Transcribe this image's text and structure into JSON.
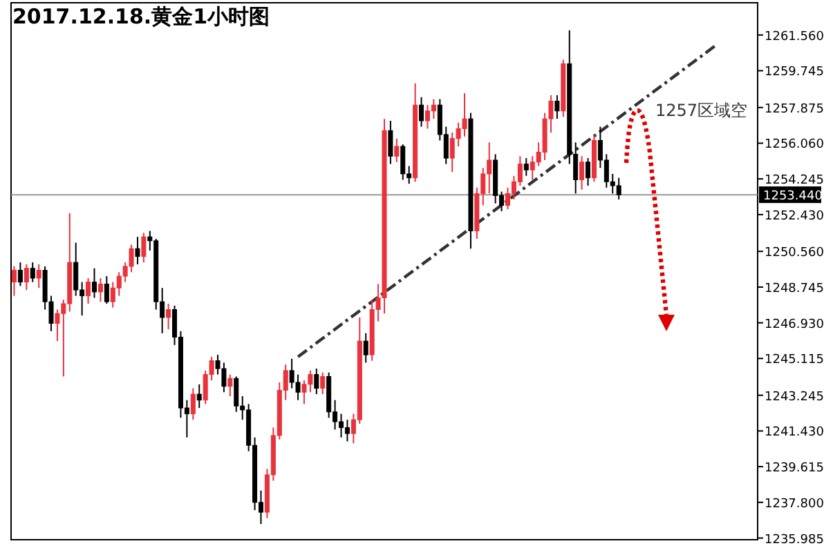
{
  "chart_data": {
    "type": "candlestick",
    "title": "2017.12.18.黄金1小时图",
    "categories": [
      null,
      null,
      null,
      null,
      null,
      null,
      null,
      null,
      null,
      null,
      null,
      null,
      null,
      null,
      null,
      null,
      null,
      null,
      null,
      null,
      null,
      null,
      null,
      null,
      null,
      null,
      null,
      null,
      null,
      null,
      null,
      null,
      null,
      null,
      null,
      null,
      null,
      null,
      null,
      null,
      null,
      null,
      null,
      null,
      null,
      null,
      null,
      null,
      null,
      null,
      null,
      null,
      null,
      null,
      null,
      null,
      null,
      null,
      null,
      null,
      null,
      null,
      null,
      null,
      null,
      null,
      null,
      null,
      null,
      null,
      null,
      null,
      null,
      null,
      null,
      null,
      null,
      null,
      null,
      null,
      null,
      null,
      null,
      null,
      null,
      null,
      null,
      null,
      null,
      null,
      null,
      null,
      null,
      null,
      null,
      null,
      null,
      null,
      null,
      null,
      null,
      null,
      null,
      null,
      null,
      null,
      null,
      null,
      null,
      null,
      null,
      null,
      null,
      null,
      null,
      null,
      null,
      null,
      null,
      null,
      null
    ],
    "ohlc": [
      [
        1249.0,
        1249.8,
        1248.3,
        1249.6
      ],
      [
        1249.6,
        1250.0,
        1248.8,
        1249.0
      ],
      [
        1249.0,
        1249.9,
        1248.6,
        1249.7
      ],
      [
        1249.7,
        1250.0,
        1249.0,
        1249.2
      ],
      [
        1249.2,
        1249.9,
        1248.7,
        1249.6
      ],
      [
        1249.6,
        1249.8,
        1247.6,
        1248.0
      ],
      [
        1248.0,
        1248.3,
        1246.5,
        1246.9
      ],
      [
        1246.9,
        1247.6,
        1246.0,
        1247.4
      ],
      [
        1247.4,
        1248.1,
        1244.2,
        1247.9
      ],
      [
        1247.9,
        1252.5,
        1247.5,
        1250.0
      ],
      [
        1250.0,
        1251.0,
        1248.3,
        1248.6
      ],
      [
        1248.6,
        1249.0,
        1247.3,
        1248.3
      ],
      [
        1248.3,
        1249.2,
        1247.9,
        1249.0
      ],
      [
        1249.0,
        1249.7,
        1248.2,
        1248.5
      ],
      [
        1248.5,
        1249.2,
        1248.0,
        1248.9
      ],
      [
        1248.9,
        1249.3,
        1247.9,
        1248.0
      ],
      [
        1248.0,
        1249.0,
        1247.7,
        1248.7
      ],
      [
        1248.7,
        1249.5,
        1248.3,
        1249.3
      ],
      [
        1249.3,
        1250.0,
        1249.0,
        1249.8
      ],
      [
        1249.8,
        1250.9,
        1249.5,
        1250.7
      ],
      [
        1250.7,
        1251.3,
        1249.9,
        1250.3
      ],
      [
        1250.3,
        1251.5,
        1250.0,
        1251.3
      ],
      [
        1251.3,
        1251.6,
        1250.6,
        1251.1
      ],
      [
        1251.1,
        1251.2,
        1247.6,
        1248.0
      ],
      [
        1248.0,
        1248.7,
        1246.4,
        1247.2
      ],
      [
        1247.2,
        1247.9,
        1246.6,
        1247.6
      ],
      [
        1247.6,
        1247.8,
        1245.8,
        1246.2
      ],
      [
        1246.2,
        1246.5,
        1242.1,
        1242.6
      ],
      [
        1242.6,
        1243.0,
        1241.1,
        1242.3
      ],
      [
        1242.3,
        1243.6,
        1242.0,
        1243.3
      ],
      [
        1243.3,
        1243.8,
        1242.6,
        1243.0
      ],
      [
        1243.0,
        1244.5,
        1242.8,
        1244.3
      ],
      [
        1244.3,
        1245.2,
        1244.0,
        1245.0
      ],
      [
        1245.0,
        1245.3,
        1244.3,
        1244.6
      ],
      [
        1244.6,
        1244.9,
        1243.4,
        1243.7
      ],
      [
        1243.7,
        1244.3,
        1243.2,
        1244.1
      ],
      [
        1244.1,
        1244.2,
        1242.4,
        1242.7
      ],
      [
        1242.7,
        1243.2,
        1242.0,
        1242.5
      ],
      [
        1242.5,
        1242.8,
        1240.4,
        1240.7
      ],
      [
        1240.7,
        1241.1,
        1237.4,
        1237.8
      ],
      [
        1237.8,
        1238.4,
        1236.7,
        1237.3
      ],
      [
        1237.3,
        1239.5,
        1237.0,
        1239.2
      ],
      [
        1239.2,
        1241.6,
        1238.9,
        1241.2
      ],
      [
        1241.2,
        1243.9,
        1241.0,
        1243.5
      ],
      [
        1243.5,
        1244.8,
        1243.0,
        1244.5
      ],
      [
        1244.5,
        1245.1,
        1243.6,
        1243.9
      ],
      [
        1243.9,
        1244.3,
        1243.0,
        1243.4
      ],
      [
        1243.4,
        1244.0,
        1242.8,
        1243.8
      ],
      [
        1243.8,
        1244.5,
        1243.4,
        1244.3
      ],
      [
        1244.3,
        1244.6,
        1243.3,
        1243.6
      ],
      [
        1243.6,
        1244.4,
        1243.3,
        1244.2
      ],
      [
        1244.2,
        1244.4,
        1242.1,
        1242.4
      ],
      [
        1242.4,
        1243.0,
        1241.5,
        1241.9
      ],
      [
        1241.9,
        1242.3,
        1241.1,
        1241.6
      ],
      [
        1241.6,
        1242.0,
        1240.9,
        1241.3
      ],
      [
        1241.3,
        1242.3,
        1240.8,
        1242.0
      ],
      [
        1242.0,
        1247.2,
        1241.8,
        1246.0
      ],
      [
        1246.0,
        1246.4,
        1244.9,
        1245.3
      ],
      [
        1245.3,
        1248.1,
        1245.0,
        1247.6
      ],
      [
        1247.6,
        1248.9,
        1247.0,
        1248.2
      ],
      [
        1248.2,
        1257.3,
        1247.4,
        1256.7
      ],
      [
        1256.7,
        1257.2,
        1255.0,
        1255.4
      ],
      [
        1255.4,
        1256.3,
        1255.1,
        1255.9
      ],
      [
        1255.9,
        1256.0,
        1254.2,
        1254.5
      ],
      [
        1254.5,
        1254.9,
        1254.0,
        1254.3
      ],
      [
        1254.3,
        1259.1,
        1254.1,
        1258.0
      ],
      [
        1258.0,
        1258.4,
        1256.9,
        1257.2
      ],
      [
        1257.2,
        1258.0,
        1256.8,
        1257.7
      ],
      [
        1257.7,
        1258.3,
        1257.3,
        1258.0
      ],
      [
        1258.0,
        1258.3,
        1256.2,
        1256.5
      ],
      [
        1256.5,
        1256.9,
        1255.0,
        1255.3
      ],
      [
        1255.3,
        1256.6,
        1254.6,
        1256.3
      ],
      [
        1256.3,
        1257.1,
        1255.9,
        1256.8
      ],
      [
        1256.8,
        1258.6,
        1256.4,
        1257.3
      ],
      [
        1257.3,
        1257.6,
        1250.7,
        1251.6
      ],
      [
        1251.6,
        1253.8,
        1251.2,
        1253.5
      ],
      [
        1253.5,
        1254.8,
        1252.9,
        1254.5
      ],
      [
        1254.5,
        1256.1,
        1253.5,
        1255.2
      ],
      [
        1255.2,
        1255.5,
        1253.0,
        1253.4
      ],
      [
        1253.4,
        1253.6,
        1252.6,
        1252.9
      ],
      [
        1252.9,
        1253.8,
        1252.7,
        1253.5
      ],
      [
        1253.5,
        1254.4,
        1253.2,
        1254.1
      ],
      [
        1254.1,
        1255.4,
        1253.9,
        1255.0
      ],
      [
        1255.0,
        1255.3,
        1254.4,
        1254.7
      ],
      [
        1254.7,
        1255.4,
        1254.2,
        1255.1
      ],
      [
        1255.1,
        1256.1,
        1254.9,
        1255.6
      ],
      [
        1255.6,
        1257.6,
        1255.2,
        1257.3
      ],
      [
        1257.3,
        1258.5,
        1256.6,
        1258.2
      ],
      [
        1258.2,
        1258.5,
        1257.3,
        1257.7
      ],
      [
        1257.7,
        1260.3,
        1257.4,
        1260.1
      ],
      [
        1260.1,
        1261.8,
        1255.0,
        1255.5
      ],
      [
        1255.5,
        1256.1,
        1253.5,
        1254.2
      ],
      [
        1254.2,
        1255.4,
        1253.7,
        1255.1
      ],
      [
        1255.1,
        1255.3,
        1253.9,
        1254.3
      ],
      [
        1254.3,
        1256.5,
        1254.1,
        1256.2
      ],
      [
        1256.2,
        1256.9,
        1254.8,
        1255.2
      ],
      [
        1255.2,
        1255.5,
        1253.8,
        1254.1
      ],
      [
        1254.1,
        1254.5,
        1253.5,
        1253.9
      ],
      [
        1253.9,
        1254.3,
        1253.2,
        1253.44
      ],
      null,
      null,
      null,
      null,
      null,
      null,
      null,
      null,
      null,
      null,
      null,
      null,
      null,
      null,
      null,
      null,
      null,
      null,
      null,
      null,
      null,
      null
    ],
    "colors": [
      "#e8323c",
      "#000000",
      "#e8323c",
      "#000000",
      "#e8323c",
      "#000000",
      "#000000",
      "#e8323c",
      "#e8323c",
      "#e8323c",
      "#000000",
      "#000000",
      "#e8323c",
      "#000000",
      "#e8323c",
      "#000000",
      "#e8323c",
      "#e8323c",
      "#e8323c",
      "#e8323c",
      "#000000",
      "#e8323c",
      "#000000",
      "#000000",
      "#000000",
      "#e8323c",
      "#000000",
      "#000000",
      "#000000",
      "#e8323c",
      "#000000",
      "#e8323c",
      "#e8323c",
      "#000000",
      "#000000",
      "#e8323c",
      "#000000",
      "#000000",
      "#000000",
      "#000000",
      "#000000",
      "#e8323c",
      "#e8323c",
      "#e8323c",
      "#e8323c",
      "#000000",
      "#000000",
      "#e8323c",
      "#e8323c",
      "#000000",
      "#e8323c",
      "#000000",
      "#000000",
      "#000000",
      "#000000",
      "#e8323c",
      "#e8323c",
      "#000000",
      "#e8323c",
      "#e8323c",
      "#e8323c",
      "#000000",
      "#e8323c",
      "#000000",
      "#000000",
      "#e8323c",
      "#000000",
      "#e8323c",
      "#e8323c",
      "#000000",
      "#000000",
      "#e8323c",
      "#e8323c",
      "#e8323c",
      "#000000",
      "#e8323c",
      "#e8323c",
      "#e8323c",
      "#000000",
      "#000000",
      "#e8323c",
      "#e8323c",
      "#e8323c",
      "#000000",
      "#e8323c",
      "#e8323c",
      "#e8323c",
      "#e8323c",
      "#000000",
      "#e8323c",
      "#000000",
      "#000000",
      "#e8323c",
      "#000000",
      "#e8323c",
      "#000000",
      "#000000",
      "#000000",
      "#000000",
      null,
      null,
      null,
      null,
      null,
      null,
      null,
      null,
      null,
      null,
      null,
      null,
      null,
      null,
      null,
      null,
      null,
      null,
      null,
      null,
      null,
      null
    ],
    "series": [
      {
        "type": "line",
        "values": [
          null,
          null,
          null,
          null,
          null,
          null,
          null,
          null,
          null,
          null,
          null,
          null,
          null,
          null,
          null,
          null,
          null,
          null,
          null,
          null,
          null,
          null,
          null,
          null,
          null,
          null,
          null,
          null,
          null,
          null,
          null,
          null,
          null,
          null,
          null,
          null,
          null,
          null,
          null,
          null,
          null,
          null,
          null,
          null,
          null,
          null,
          1245.2,
          null,
          null,
          null,
          null,
          null,
          null,
          null,
          null,
          null,
          null,
          null,
          null,
          null,
          null,
          null,
          null,
          null,
          null,
          null,
          null,
          null,
          null,
          null,
          null,
          null,
          null,
          null,
          null,
          null,
          null,
          null,
          null,
          null,
          null,
          null,
          null,
          null,
          null,
          null,
          null,
          null,
          null,
          null,
          null,
          null,
          null,
          null,
          null,
          null,
          null,
          null,
          null,
          null,
          null,
          null,
          null,
          null,
          null,
          null,
          null,
          null,
          null,
          null,
          null,
          null,
          null,
          null,
          1261.1,
          null,
          null,
          null,
          null,
          null,
          null
        ],
        "color": "#333333",
        "line_style": "dashed"
      }
    ],
    "ylim": [
      1235.9,
      1263.2
    ],
    "yticks": [
      {
        "value": 1261.56,
        "label": "1261.560"
      },
      {
        "value": 1259.745,
        "label": "1259.745"
      },
      {
        "value": 1257.875,
        "label": "1257.875"
      },
      {
        "value": 1256.06,
        "label": "1256.060"
      },
      {
        "value": 1254.245,
        "label": "1254.245"
      },
      {
        "value": 1252.43,
        "label": "1252.430"
      },
      {
        "value": 1250.56,
        "label": "1250.560"
      },
      {
        "value": 1248.745,
        "label": "1248.745"
      },
      {
        "value": 1246.93,
        "label": "1246.930"
      },
      {
        "value": 1245.115,
        "label": "1245.115"
      },
      {
        "value": 1243.245,
        "label": "1243.245"
      },
      {
        "value": 1241.43,
        "label": "1241.430"
      },
      {
        "value": 1239.615,
        "label": "1239.615"
      },
      {
        "value": 1237.8,
        "label": "1237.800"
      },
      {
        "value": 1235.985,
        "label": "1235.985"
      }
    ],
    "ref_lines": [
      {
        "axis": "y",
        "value": 1253.44,
        "label": "1253.440",
        "color": "#999999"
      }
    ],
    "annotations": [
      "1257区域空"
    ],
    "tick_labels": "y"
  }
}
